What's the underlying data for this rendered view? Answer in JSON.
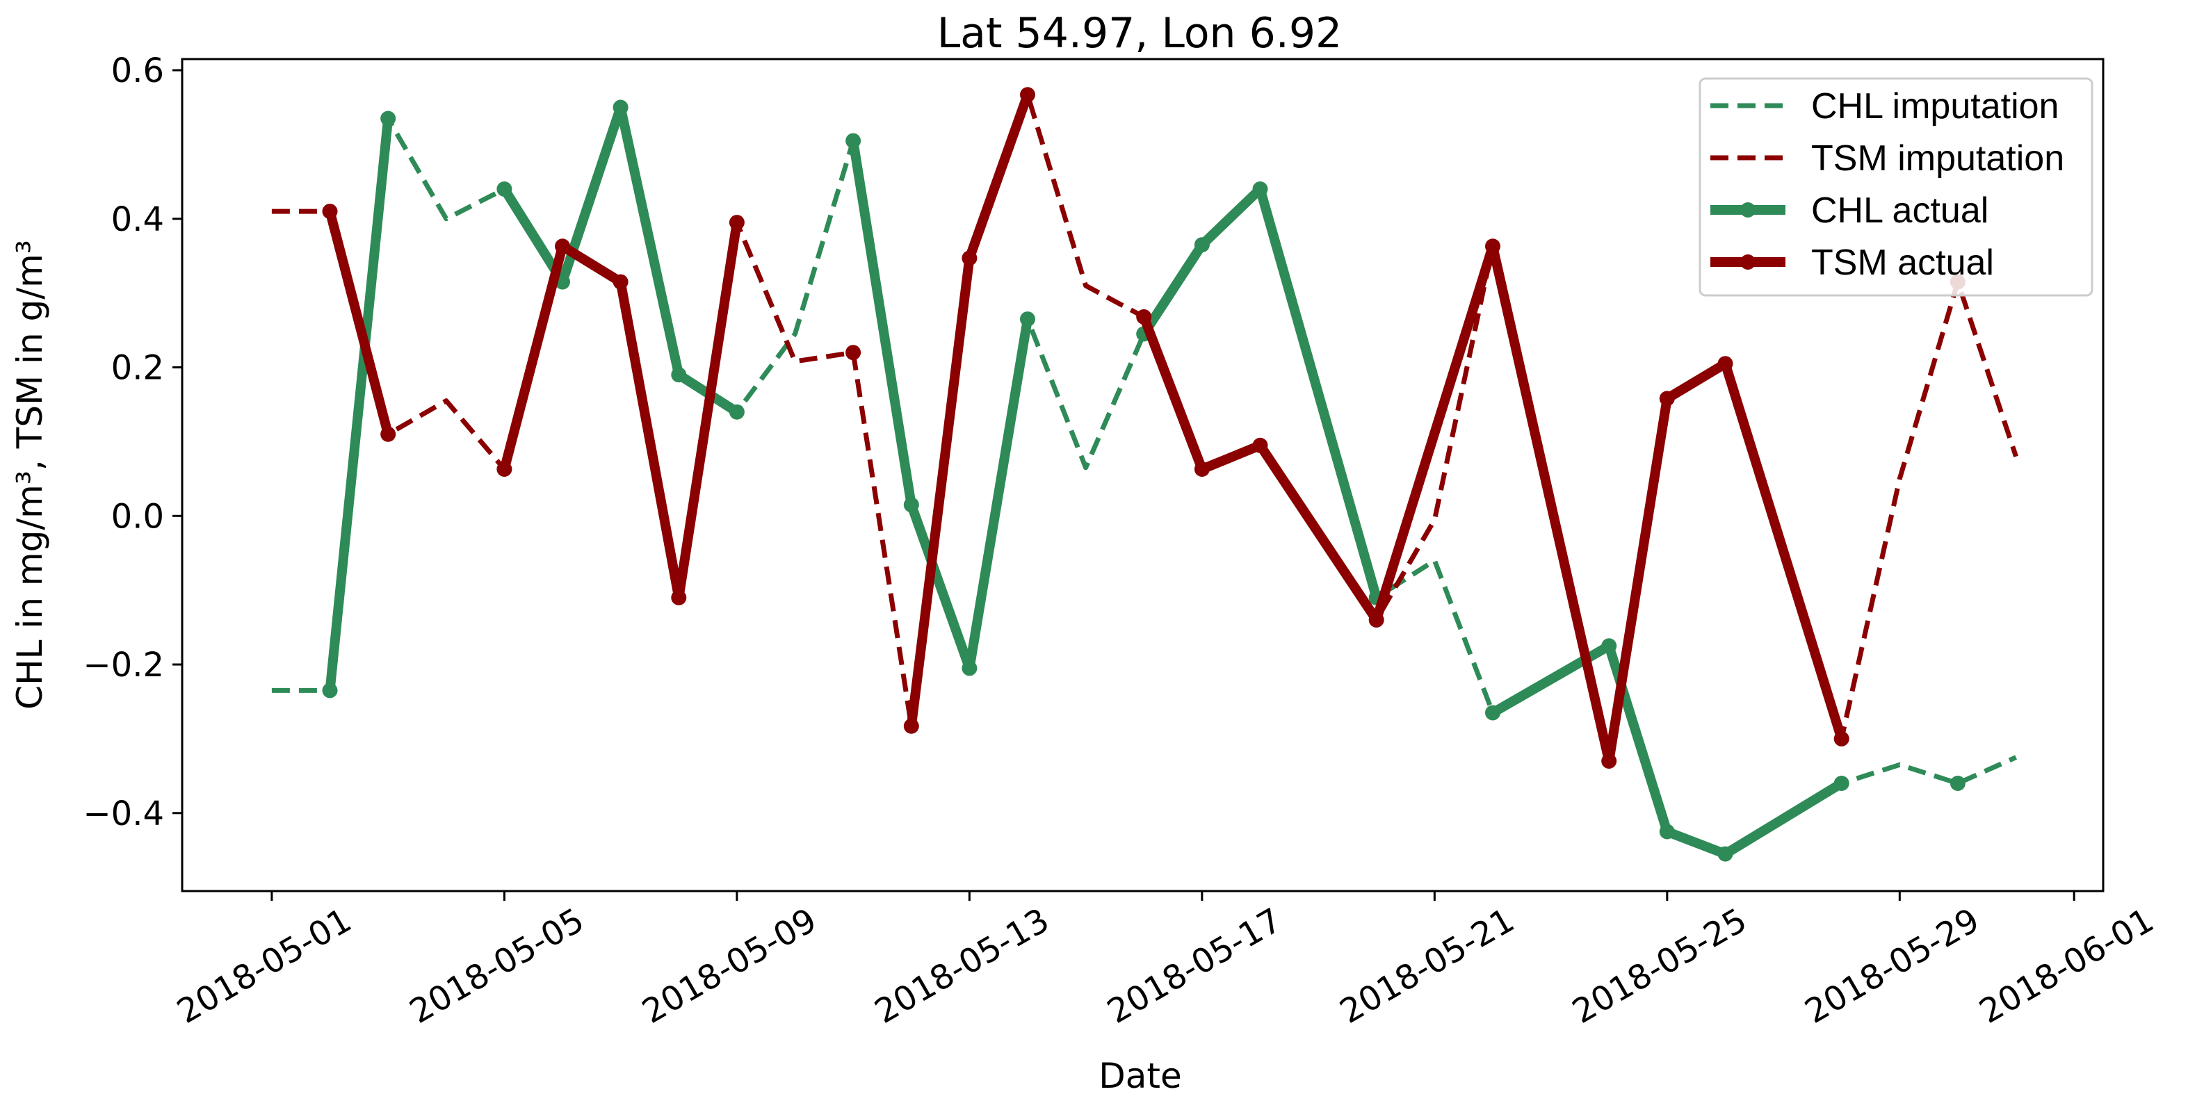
{
  "chart_data": {
    "type": "line",
    "title": "Lat 54.97, Lon 6.92",
    "xlabel": "Date",
    "ylabel": "CHL in mg/m³, TSM in g/m³",
    "x_range": [
      "2018-04-29T11:00",
      "2018-06-01T12:00"
    ],
    "ylim": [
      -0.505,
      0.615
    ],
    "x_ticks": [
      "2018-05-01",
      "2018-05-05",
      "2018-05-09",
      "2018-05-13",
      "2018-05-17",
      "2018-05-21",
      "2018-05-25",
      "2018-05-29",
      "2018-06-01"
    ],
    "y_ticks": [
      -0.4,
      -0.2,
      0.0,
      0.2,
      0.4,
      0.6
    ],
    "y_tick_labels": [
      "−0.4",
      "−0.2",
      "0.0",
      "0.2",
      "0.4",
      "0.6"
    ],
    "legend_position": "top-right",
    "series": [
      {
        "name": "CHL imputation",
        "style": "dashed",
        "color": "#2e8b57",
        "points": [
          [
            "2018-05-01",
            -0.235
          ],
          [
            "2018-05-02",
            -0.235
          ],
          [
            "2018-05-03",
            0.535
          ],
          [
            "2018-05-04",
            0.4
          ],
          [
            "2018-05-05",
            0.44
          ],
          [
            "2018-05-06",
            0.315
          ],
          [
            "2018-05-07",
            0.55
          ],
          [
            "2018-05-08",
            0.19
          ],
          [
            "2018-05-09",
            0.14
          ],
          [
            "2018-05-10",
            0.245
          ],
          [
            "2018-05-11",
            0.505
          ],
          [
            "2018-05-12",
            0.015
          ],
          [
            "2018-05-13",
            -0.205
          ],
          [
            "2018-05-14",
            0.265
          ],
          [
            "2018-05-15",
            0.065
          ],
          [
            "2018-05-16",
            0.245
          ],
          [
            "2018-05-17",
            0.365
          ],
          [
            "2018-05-18",
            0.44
          ],
          [
            "2018-05-19",
            0.16
          ],
          [
            "2018-05-20",
            -0.11
          ],
          [
            "2018-05-21",
            -0.06
          ],
          [
            "2018-05-22",
            -0.265
          ],
          [
            "2018-05-23",
            -0.22
          ],
          [
            "2018-05-24",
            -0.175
          ],
          [
            "2018-05-25",
            -0.425
          ],
          [
            "2018-05-26",
            -0.455
          ],
          [
            "2018-05-27",
            -0.41
          ],
          [
            "2018-05-28",
            -0.36
          ],
          [
            "2018-05-29",
            -0.335
          ],
          [
            "2018-05-30",
            -0.36
          ],
          [
            "2018-05-31",
            -0.325
          ]
        ]
      },
      {
        "name": "TSM imputation",
        "style": "dashed",
        "color": "#8b0000",
        "points": [
          [
            "2018-05-01",
            0.41
          ],
          [
            "2018-05-02",
            0.41
          ],
          [
            "2018-05-03",
            0.11
          ],
          [
            "2018-05-04",
            0.155
          ],
          [
            "2018-05-05",
            0.063
          ],
          [
            "2018-05-06",
            0.363
          ],
          [
            "2018-05-07",
            0.315
          ],
          [
            "2018-05-08",
            -0.11
          ],
          [
            "2018-05-09",
            0.395
          ],
          [
            "2018-05-10",
            0.208
          ],
          [
            "2018-05-11",
            0.22
          ],
          [
            "2018-05-12",
            -0.283
          ],
          [
            "2018-05-13",
            0.347
          ],
          [
            "2018-05-14",
            0.567
          ],
          [
            "2018-05-15",
            0.31
          ],
          [
            "2018-05-16",
            0.268
          ],
          [
            "2018-05-17",
            0.063
          ],
          [
            "2018-05-18",
            0.095
          ],
          [
            "2018-05-19",
            -0.025
          ],
          [
            "2018-05-20",
            -0.14
          ],
          [
            "2018-05-21",
            -0.005
          ],
          [
            "2018-05-22",
            0.363
          ],
          [
            "2018-05-23",
            0.015
          ],
          [
            "2018-05-24",
            -0.33
          ],
          [
            "2018-05-25",
            0.158
          ],
          [
            "2018-05-26",
            0.205
          ],
          [
            "2018-05-27",
            -0.05
          ],
          [
            "2018-05-28",
            -0.3
          ],
          [
            "2018-05-29",
            0.05
          ],
          [
            "2018-05-30",
            0.315
          ],
          [
            "2018-05-31",
            0.08
          ]
        ]
      },
      {
        "name": "CHL actual",
        "style": "solid",
        "color": "#2e8b57",
        "points": [
          [
            "2018-05-02",
            -0.235
          ],
          [
            "2018-05-03",
            0.535
          ],
          [
            "2018-05-05",
            0.44
          ],
          [
            "2018-05-06",
            0.315
          ],
          [
            "2018-05-07",
            0.55
          ],
          [
            "2018-05-08",
            0.19
          ],
          [
            "2018-05-09",
            0.14
          ],
          [
            "2018-05-11",
            0.505
          ],
          [
            "2018-05-12",
            0.015
          ],
          [
            "2018-05-13",
            -0.205
          ],
          [
            "2018-05-14",
            0.265
          ],
          [
            "2018-05-16",
            0.245
          ],
          [
            "2018-05-17",
            0.365
          ],
          [
            "2018-05-18",
            0.44
          ],
          [
            "2018-05-20",
            -0.11
          ],
          [
            "2018-05-22",
            -0.265
          ],
          [
            "2018-05-24",
            -0.175
          ],
          [
            "2018-05-25",
            -0.425
          ],
          [
            "2018-05-26",
            -0.455
          ],
          [
            "2018-05-28",
            -0.36
          ],
          [
            "2018-05-30",
            -0.36
          ]
        ],
        "breaks_after": [
          "2018-05-03",
          "2018-05-09",
          "2018-05-14",
          "2018-05-20",
          "2018-05-28"
        ]
      },
      {
        "name": "TSM actual",
        "style": "solid",
        "color": "#8b0000",
        "points": [
          [
            "2018-05-02",
            0.41
          ],
          [
            "2018-05-03",
            0.11
          ],
          [
            "2018-05-05",
            0.063
          ],
          [
            "2018-05-06",
            0.363
          ],
          [
            "2018-05-07",
            0.315
          ],
          [
            "2018-05-08",
            -0.11
          ],
          [
            "2018-05-09",
            0.395
          ],
          [
            "2018-05-11",
            0.22
          ],
          [
            "2018-05-12",
            -0.283
          ],
          [
            "2018-05-13",
            0.347
          ],
          [
            "2018-05-14",
            0.567
          ],
          [
            "2018-05-16",
            0.268
          ],
          [
            "2018-05-17",
            0.063
          ],
          [
            "2018-05-18",
            0.095
          ],
          [
            "2018-05-20",
            -0.14
          ],
          [
            "2018-05-22",
            0.363
          ],
          [
            "2018-05-24",
            -0.33
          ],
          [
            "2018-05-25",
            0.158
          ],
          [
            "2018-05-26",
            0.205
          ],
          [
            "2018-05-28",
            -0.3
          ],
          [
            "2018-05-30",
            0.315
          ]
        ],
        "breaks_after": [
          "2018-05-03",
          "2018-05-09",
          "2018-05-11",
          "2018-05-14",
          "2018-05-28"
        ]
      }
    ]
  }
}
